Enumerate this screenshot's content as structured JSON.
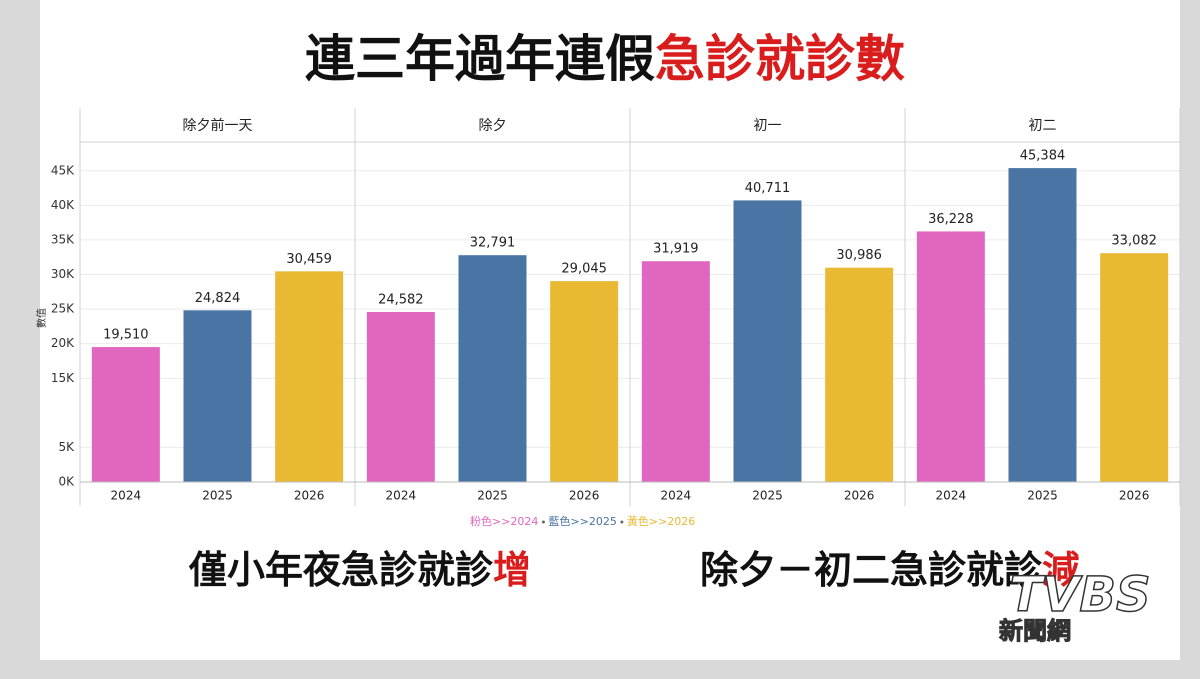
{
  "header": {
    "title_black": "連三年過年連假",
    "title_red": "急診就診數"
  },
  "chart_data": [
    {
      "type": "bar",
      "facet": "除夕前一天",
      "y_label": "數值",
      "categories": [
        "2024",
        "2025",
        "2026"
      ],
      "values": [
        19510,
        24824,
        30459
      ],
      "value_labels": [
        "19,510",
        "24,824",
        "30,459"
      ],
      "colors": [
        "#e066c0",
        "#4a74a4",
        "#e9b934"
      ],
      "ylim": [
        0,
        48000
      ],
      "yticks": [
        {
          "value": 0,
          "label": "0K"
        },
        {
          "value": 5000,
          "label": "5K"
        },
        {
          "value": 15000,
          "label": "15K"
        },
        {
          "value": 20000,
          "label": "20K"
        },
        {
          "value": 25000,
          "label": "25K"
        },
        {
          "value": 30000,
          "label": "30K"
        },
        {
          "value": 35000,
          "label": "35K"
        },
        {
          "value": 40000,
          "label": "40K"
        },
        {
          "value": 45000,
          "label": "45K"
        }
      ],
      "grid": true
    },
    {
      "type": "bar",
      "facet": "除夕",
      "categories": [
        "2024",
        "2025",
        "2026"
      ],
      "values": [
        24582,
        32791,
        29045
      ],
      "value_labels": [
        "24,582",
        "32,791",
        "29,045"
      ],
      "colors": [
        "#e066c0",
        "#4a74a4",
        "#e9b934"
      ],
      "ylim": [
        0,
        48000
      ]
    },
    {
      "type": "bar",
      "facet": "初一",
      "categories": [
        "2024",
        "2025",
        "2026"
      ],
      "values": [
        31919,
        40711,
        30986
      ],
      "value_labels": [
        "31,919",
        "40,711",
        "30,986"
      ],
      "colors": [
        "#e066c0",
        "#4a74a4",
        "#e9b934"
      ],
      "ylim": [
        0,
        48000
      ]
    },
    {
      "type": "bar",
      "facet": "初二",
      "categories": [
        "2024",
        "2025",
        "2026"
      ],
      "values": [
        36228,
        45384,
        33082
      ],
      "value_labels": [
        "36,228",
        "45,384",
        "33,082"
      ],
      "colors": [
        "#e066c0",
        "#4a74a4",
        "#e9b934"
      ],
      "ylim": [
        0,
        48000
      ]
    }
  ],
  "legend_note": [
    "粉色>>2024",
    "藍色>>2025",
    "黃色>>2026"
  ],
  "captions": [
    {
      "text": "僅小年夜急診就診",
      "highlight": "增"
    },
    {
      "text": "除夕－初二急診就診",
      "highlight": "減"
    }
  ],
  "logo": {
    "brand": "TVBS",
    "sub": "新聞網"
  }
}
